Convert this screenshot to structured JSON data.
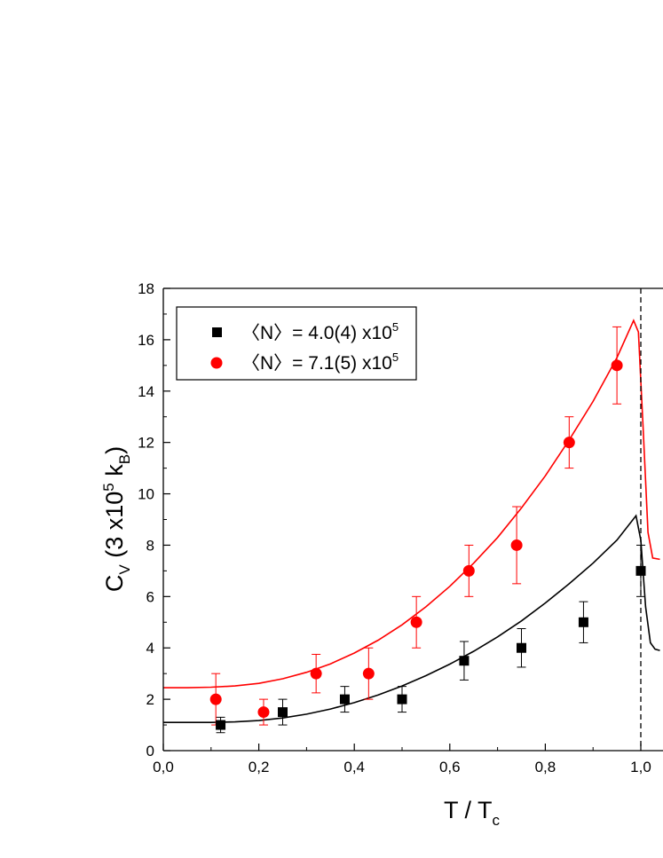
{
  "chart_data": {
    "type": "scatter",
    "xlabel": {
      "main": "T / T",
      "sub": "c"
    },
    "ylabel": {
      "main": "C",
      "sub1": "V",
      "mid": " (3 x10",
      "sup": "5",
      "mid2": " k",
      "sub2": "B",
      "end": ")"
    },
    "xlim": [
      0.0,
      1.04
    ],
    "ylim": [
      0,
      18
    ],
    "x_ticks": [
      0.0,
      0.2,
      0.4,
      0.6,
      0.8,
      1.0
    ],
    "x_tick_labels": [
      "0,0",
      "0,2",
      "0,4",
      "0,6",
      "0,8",
      "1,0"
    ],
    "y_ticks": [
      0,
      2,
      4,
      6,
      8,
      10,
      12,
      14,
      16,
      18
    ],
    "y_tick_labels": [
      "0",
      "2",
      "4",
      "6",
      "8",
      "10",
      "12",
      "14",
      "16",
      "18"
    ],
    "grid": false,
    "legend_position": "top-left",
    "reference_line_x": 1.0,
    "series": [
      {
        "name": "〈N〉= 4.0(4) x10",
        "name_sup": "5",
        "marker": "square",
        "color": "#000000",
        "points": [
          {
            "x": 0.12,
            "y": 1.0,
            "err": 0.3
          },
          {
            "x": 0.25,
            "y": 1.5,
            "err": 0.5
          },
          {
            "x": 0.38,
            "y": 2.0,
            "err": 0.5
          },
          {
            "x": 0.5,
            "y": 2.0,
            "err": 0.5
          },
          {
            "x": 0.63,
            "y": 3.5,
            "err": 0.75
          },
          {
            "x": 0.75,
            "y": 4.0,
            "err": 0.75
          },
          {
            "x": 0.88,
            "y": 5.0,
            "err": 0.8
          },
          {
            "x": 1.0,
            "y": 7.0,
            "err": 1.0
          }
        ],
        "fit_curve": {
          "x": [
            0.0,
            0.05,
            0.1,
            0.15,
            0.2,
            0.25,
            0.3,
            0.35,
            0.4,
            0.45,
            0.5,
            0.55,
            0.6,
            0.65,
            0.7,
            0.75,
            0.8,
            0.85,
            0.9,
            0.95,
            0.99,
            1.0,
            1.01,
            1.02,
            1.03,
            1.04
          ],
          "y": [
            1.1,
            1.1,
            1.1,
            1.12,
            1.17,
            1.27,
            1.42,
            1.62,
            1.87,
            2.17,
            2.52,
            2.92,
            3.37,
            3.87,
            4.43,
            5.05,
            5.75,
            6.5,
            7.3,
            8.2,
            9.15,
            8.2,
            5.6,
            4.2,
            3.95,
            3.9
          ]
        }
      },
      {
        "name": "〈N〉= 7.1(5) x10",
        "name_sup": "5",
        "marker": "circle",
        "color": "#ff0000",
        "points": [
          {
            "x": 0.11,
            "y": 2.0,
            "err": 1.0
          },
          {
            "x": 0.21,
            "y": 1.5,
            "err": 0.5
          },
          {
            "x": 0.32,
            "y": 3.0,
            "err": 0.75
          },
          {
            "x": 0.43,
            "y": 3.0,
            "err": 1.0
          },
          {
            "x": 0.53,
            "y": 5.0,
            "err": 1.0
          },
          {
            "x": 0.64,
            "y": 7.0,
            "err": 1.0
          },
          {
            "x": 0.74,
            "y": 8.0,
            "err": 1.5
          },
          {
            "x": 0.85,
            "y": 12.0,
            "err": 1.0
          },
          {
            "x": 0.95,
            "y": 15.0,
            "err": 1.5
          }
        ],
        "fit_curve": {
          "x": [
            0.0,
            0.05,
            0.1,
            0.15,
            0.2,
            0.25,
            0.3,
            0.35,
            0.4,
            0.45,
            0.5,
            0.55,
            0.6,
            0.65,
            0.7,
            0.75,
            0.8,
            0.85,
            0.9,
            0.95,
            0.985,
            0.995,
            1.005,
            1.015,
            1.025,
            1.04
          ],
          "y": [
            2.45,
            2.45,
            2.47,
            2.52,
            2.62,
            2.8,
            3.05,
            3.38,
            3.8,
            4.3,
            4.9,
            5.6,
            6.4,
            7.3,
            8.3,
            9.45,
            10.7,
            12.1,
            13.6,
            15.3,
            16.75,
            16.3,
            12.5,
            8.5,
            7.5,
            7.45
          ]
        }
      }
    ]
  }
}
